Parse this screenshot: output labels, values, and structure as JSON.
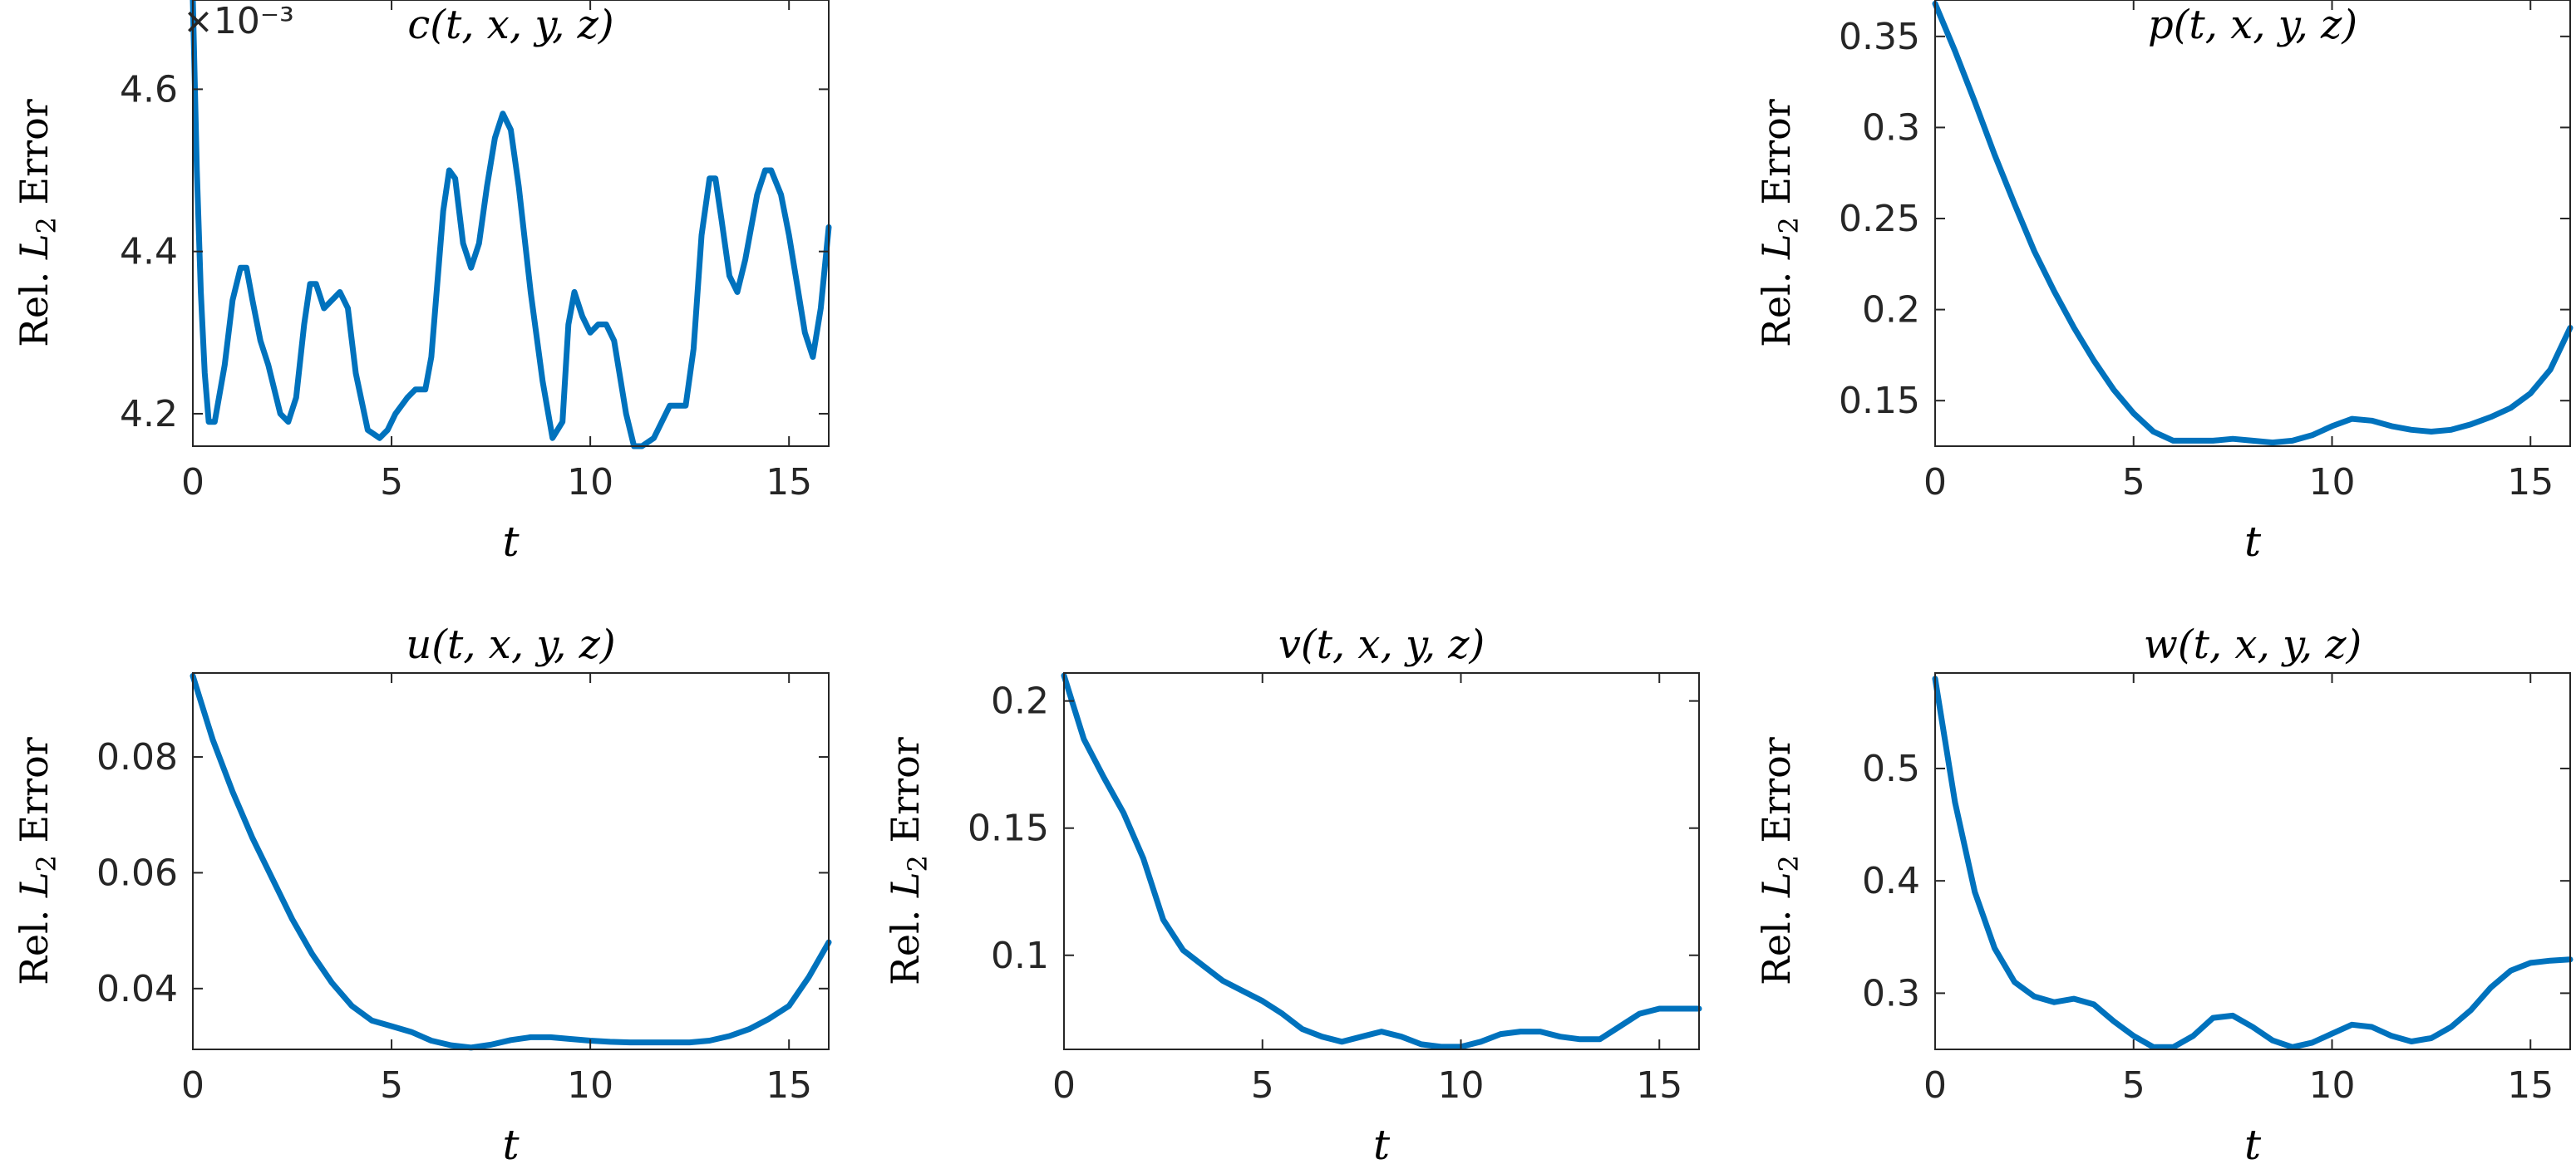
{
  "colors": {
    "line": "#0072BD",
    "axis": "#262626",
    "text": "#000000"
  },
  "chart_data": [
    {
      "type": "line",
      "title": "c(t, x, y, z)",
      "xlabel": "t",
      "ylabel": "Rel. L2 Error",
      "ylabel_parts": {
        "pre": "Rel. ",
        "var": "L",
        "sub": "2",
        "post": " Error"
      },
      "y_exponent": "×10⁻³",
      "xlim": [
        0,
        16
      ],
      "ylim": [
        4.16,
        4.71
      ],
      "xticks": [
        0,
        5,
        10,
        15
      ],
      "xtick_labels": [
        "0",
        "5",
        "10",
        "15"
      ],
      "yticks": [
        4.2,
        4.4,
        4.6
      ],
      "ytick_labels": [
        "4.2",
        "4.4",
        "4.6"
      ],
      "grid": false,
      "series": [
        {
          "x": [
            0,
            0.1,
            0.2,
            0.3,
            0.4,
            0.55,
            0.8,
            1.0,
            1.2,
            1.35,
            1.5,
            1.7,
            1.9,
            2.2,
            2.4,
            2.6,
            2.8,
            2.95,
            3.1,
            3.3,
            3.5,
            3.7,
            3.9,
            4.1,
            4.4,
            4.7,
            4.9,
            5.1,
            5.4,
            5.6,
            5.85,
            6.0,
            6.3,
            6.45,
            6.6,
            6.8,
            7.0,
            7.2,
            7.4,
            7.6,
            7.8,
            8.0,
            8.2,
            8.5,
            8.8,
            9.05,
            9.3,
            9.45,
            9.6,
            9.8,
            10.0,
            10.2,
            10.4,
            10.6,
            10.9,
            11.1,
            11.3,
            11.6,
            11.8,
            12.0,
            12.2,
            12.4,
            12.6,
            12.8,
            13.0,
            13.15,
            13.3,
            13.5,
            13.7,
            13.9,
            14.2,
            14.4,
            14.55,
            14.8,
            15.0,
            15.2,
            15.4,
            15.6,
            15.8,
            16.0
          ],
          "y": [
            4.71,
            4.5,
            4.35,
            4.25,
            4.19,
            4.19,
            4.26,
            4.34,
            4.38,
            4.38,
            4.34,
            4.29,
            4.26,
            4.2,
            4.19,
            4.22,
            4.31,
            4.36,
            4.36,
            4.33,
            4.34,
            4.35,
            4.33,
            4.25,
            4.18,
            4.17,
            4.18,
            4.2,
            4.22,
            4.23,
            4.23,
            4.27,
            4.45,
            4.5,
            4.49,
            4.41,
            4.38,
            4.41,
            4.48,
            4.54,
            4.57,
            4.55,
            4.48,
            4.35,
            4.24,
            4.17,
            4.19,
            4.31,
            4.35,
            4.32,
            4.3,
            4.31,
            4.31,
            4.29,
            4.2,
            4.16,
            4.16,
            4.17,
            4.19,
            4.21,
            4.21,
            4.21,
            4.28,
            4.42,
            4.49,
            4.49,
            4.44,
            4.37,
            4.35,
            4.39,
            4.47,
            4.5,
            4.5,
            4.47,
            4.42,
            4.36,
            4.3,
            4.27,
            4.33,
            4.43
          ]
        }
      ]
    },
    {
      "type": "line",
      "title": "p(t, x, y, z)",
      "xlabel": "t",
      "ylabel": "Rel. L2 Error",
      "ylabel_parts": {
        "pre": "Rel. ",
        "var": "L",
        "sub": "2",
        "post": " Error"
      },
      "xlim": [
        0,
        16
      ],
      "ylim": [
        0.125,
        0.37
      ],
      "xticks": [
        0,
        5,
        10,
        15
      ],
      "xtick_labels": [
        "0",
        "5",
        "10",
        "15"
      ],
      "yticks": [
        0.15,
        0.2,
        0.25,
        0.3,
        0.35
      ],
      "ytick_labels": [
        "0.15",
        "0.2",
        "0.25",
        "0.3",
        "0.35"
      ],
      "grid": false,
      "series": [
        {
          "x": [
            0,
            0.5,
            1,
            1.5,
            2,
            2.5,
            3,
            3.5,
            4,
            4.5,
            5,
            5.5,
            6,
            6.5,
            7,
            7.5,
            8,
            8.5,
            9,
            9.5,
            10,
            10.5,
            11,
            11.5,
            12,
            12.5,
            13,
            13.5,
            14,
            14.5,
            15,
            15.5,
            16
          ],
          "y": [
            0.368,
            0.342,
            0.314,
            0.285,
            0.258,
            0.232,
            0.21,
            0.19,
            0.172,
            0.156,
            0.143,
            0.133,
            0.128,
            0.128,
            0.128,
            0.129,
            0.128,
            0.127,
            0.128,
            0.131,
            0.136,
            0.14,
            0.139,
            0.136,
            0.134,
            0.133,
            0.134,
            0.137,
            0.141,
            0.146,
            0.154,
            0.167,
            0.19
          ]
        }
      ]
    },
    {
      "type": "line",
      "title": "u(t, x, y, z)",
      "xlabel": "t",
      "ylabel": "Rel. L2 Error",
      "ylabel_parts": {
        "pre": "Rel. ",
        "var": "L",
        "sub": "2",
        "post": " Error"
      },
      "xlim": [
        0,
        16
      ],
      "ylim": [
        0.0295,
        0.0945
      ],
      "xticks": [
        0,
        5,
        10,
        15
      ],
      "xtick_labels": [
        "0",
        "5",
        "10",
        "15"
      ],
      "yticks": [
        0.04,
        0.06,
        0.08
      ],
      "ytick_labels": [
        "0.04",
        "0.06",
        "0.08"
      ],
      "grid": false,
      "series": [
        {
          "x": [
            0,
            0.5,
            1,
            1.5,
            2,
            2.5,
            3,
            3.5,
            4,
            4.5,
            5,
            5.5,
            6,
            6.5,
            7,
            7.5,
            8,
            8.5,
            9,
            9.5,
            10,
            10.5,
            11,
            11.5,
            12,
            12.5,
            13,
            13.5,
            14,
            14.5,
            15,
            15.5,
            16
          ],
          "y": [
            0.094,
            0.083,
            0.074,
            0.066,
            0.059,
            0.052,
            0.046,
            0.041,
            0.037,
            0.0345,
            0.0335,
            0.0325,
            0.031,
            0.0302,
            0.0298,
            0.0303,
            0.0311,
            0.0316,
            0.0316,
            0.0313,
            0.031,
            0.0308,
            0.0307,
            0.0307,
            0.0307,
            0.0307,
            0.031,
            0.0318,
            0.033,
            0.0348,
            0.037,
            0.042,
            0.048
          ]
        }
      ]
    },
    {
      "type": "line",
      "title": "v(t, x, y, z)",
      "xlabel": "t",
      "ylabel": "Rel. L2 Error",
      "ylabel_parts": {
        "pre": "Rel. ",
        "var": "L",
        "sub": "2",
        "post": " Error"
      },
      "xlim": [
        0,
        16
      ],
      "ylim": [
        0.063,
        0.211
      ],
      "xticks": [
        0,
        5,
        10,
        15
      ],
      "xtick_labels": [
        "0",
        "5",
        "10",
        "15"
      ],
      "yticks": [
        0.1,
        0.15,
        0.2
      ],
      "ytick_labels": [
        "0.1",
        "0.15",
        "0.2"
      ],
      "grid": false,
      "series": [
        {
          "x": [
            0,
            0.5,
            1,
            1.5,
            2,
            2.5,
            3,
            3.5,
            4,
            4.5,
            5,
            5.5,
            6,
            6.5,
            7,
            7.5,
            8,
            8.5,
            9,
            9.5,
            10,
            10.5,
            11,
            11.5,
            12,
            12.5,
            13,
            13.5,
            14,
            14.5,
            15,
            15.5,
            16
          ],
          "y": [
            0.21,
            0.185,
            0.17,
            0.156,
            0.138,
            0.114,
            0.102,
            0.096,
            0.09,
            0.086,
            0.082,
            0.077,
            0.071,
            0.068,
            0.066,
            0.068,
            0.07,
            0.068,
            0.065,
            0.064,
            0.064,
            0.066,
            0.069,
            0.07,
            0.07,
            0.068,
            0.067,
            0.067,
            0.072,
            0.077,
            0.079,
            0.079,
            0.079
          ]
        }
      ]
    },
    {
      "type": "line",
      "title": "w(t, x, y, z)",
      "xlabel": "t",
      "ylabel": "Rel. L2 Error",
      "ylabel_parts": {
        "pre": "Rel. ",
        "var": "L",
        "sub": "2",
        "post": " Error"
      },
      "xlim": [
        0,
        16
      ],
      "ylim": [
        0.25,
        0.585
      ],
      "xticks": [
        0,
        5,
        10,
        15
      ],
      "xtick_labels": [
        "0",
        "5",
        "10",
        "15"
      ],
      "yticks": [
        0.3,
        0.4,
        0.5
      ],
      "ytick_labels": [
        "0.3",
        "0.4",
        "0.5"
      ],
      "grid": false,
      "series": [
        {
          "x": [
            0,
            0.5,
            1,
            1.5,
            2,
            2.5,
            3,
            3.5,
            4,
            4.5,
            5,
            5.5,
            6,
            6.5,
            7,
            7.5,
            8,
            8.5,
            9,
            9.5,
            10,
            10.5,
            11,
            11.5,
            12,
            12.5,
            13,
            13.5,
            14,
            14.5,
            15,
            15.5,
            16
          ],
          "y": [
            0.58,
            0.47,
            0.39,
            0.34,
            0.31,
            0.297,
            0.292,
            0.295,
            0.29,
            0.275,
            0.262,
            0.252,
            0.252,
            0.262,
            0.278,
            0.28,
            0.27,
            0.258,
            0.252,
            0.256,
            0.264,
            0.272,
            0.27,
            0.262,
            0.257,
            0.26,
            0.27,
            0.285,
            0.305,
            0.32,
            0.327,
            0.329,
            0.33
          ]
        }
      ]
    }
  ]
}
